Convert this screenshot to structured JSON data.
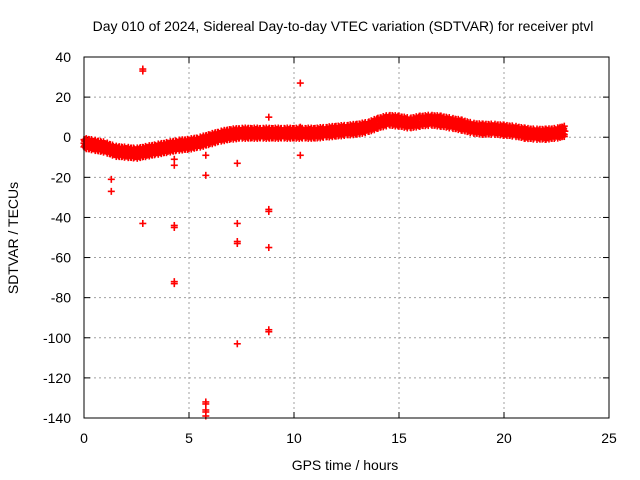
{
  "chart_data": {
    "type": "scatter",
    "title": "Day 010 of 2024, Sidereal Day-to-day VTEC variation (SDTVAR) for receiver ptvl",
    "xlabel": "GPS time / hours",
    "ylabel": "SDTVAR / TECUs",
    "xlim": [
      0,
      25
    ],
    "ylim": [
      -140,
      40
    ],
    "xticks": [
      0,
      5,
      10,
      15,
      20,
      25
    ],
    "yticks": [
      -140,
      -120,
      -100,
      -80,
      -60,
      -40,
      -20,
      0,
      20,
      40
    ],
    "grid": true,
    "marker": "+",
    "color": "#ff0000",
    "trend": [
      [
        0.0,
        -3
      ],
      [
        0.5,
        -4
      ],
      [
        1.0,
        -5
      ],
      [
        1.5,
        -7
      ],
      [
        2.0,
        -7.5
      ],
      [
        2.5,
        -8
      ],
      [
        3.0,
        -7
      ],
      [
        3.5,
        -6
      ],
      [
        4.0,
        -5
      ],
      [
        4.5,
        -4
      ],
      [
        5.0,
        -3.5
      ],
      [
        5.5,
        -2.5
      ],
      [
        6.0,
        -1
      ],
      [
        6.5,
        0.5
      ],
      [
        7.0,
        1.5
      ],
      [
        7.5,
        2
      ],
      [
        8.0,
        2
      ],
      [
        8.5,
        2
      ],
      [
        9.0,
        2
      ],
      [
        9.5,
        2
      ],
      [
        10.0,
        2
      ],
      [
        10.5,
        2
      ],
      [
        11.0,
        2
      ],
      [
        11.5,
        2.5
      ],
      [
        12.0,
        3
      ],
      [
        12.5,
        3.5
      ],
      [
        13.0,
        4
      ],
      [
        13.5,
        5
      ],
      [
        14.0,
        7
      ],
      [
        14.5,
        8.5
      ],
      [
        15.0,
        8
      ],
      [
        15.5,
        7
      ],
      [
        16.0,
        8
      ],
      [
        16.5,
        8.5
      ],
      [
        17.0,
        8
      ],
      [
        17.5,
        7
      ],
      [
        18.0,
        6
      ],
      [
        18.5,
        4.5
      ],
      [
        19.0,
        4
      ],
      [
        19.5,
        4
      ],
      [
        20.0,
        3.5
      ],
      [
        20.5,
        3
      ],
      [
        21.0,
        2
      ],
      [
        21.5,
        1.5
      ],
      [
        22.0,
        1.5
      ],
      [
        22.5,
        2
      ],
      [
        22.9,
        3
      ]
    ],
    "outliers": [
      [
        2.8,
        34
      ],
      [
        2.8,
        33
      ],
      [
        2.8,
        -43
      ],
      [
        1.3,
        -21
      ],
      [
        1.3,
        -27
      ],
      [
        4.3,
        -11
      ],
      [
        4.3,
        -14
      ],
      [
        4.3,
        -44
      ],
      [
        4.3,
        -45
      ],
      [
        4.3,
        -72
      ],
      [
        4.3,
        -73
      ],
      [
        5.8,
        -9
      ],
      [
        5.8,
        -19
      ],
      [
        5.8,
        -132
      ],
      [
        5.8,
        -133
      ],
      [
        5.8,
        -136
      ],
      [
        5.8,
        -137
      ],
      [
        5.8,
        -139
      ],
      [
        7.3,
        -13
      ],
      [
        7.3,
        -43
      ],
      [
        7.3,
        -52
      ],
      [
        7.3,
        -53
      ],
      [
        7.3,
        -103
      ],
      [
        8.8,
        10
      ],
      [
        8.8,
        -36
      ],
      [
        8.8,
        -37
      ],
      [
        8.8,
        -55
      ],
      [
        8.8,
        -96
      ],
      [
        8.8,
        -97
      ],
      [
        10.3,
        27
      ],
      [
        10.3,
        5
      ],
      [
        10.3,
        -9
      ]
    ]
  }
}
